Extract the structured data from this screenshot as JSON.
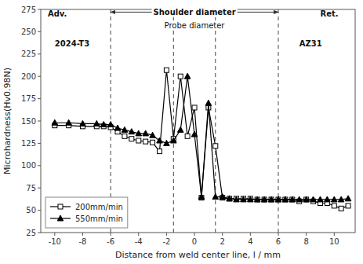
{
  "chart_data": {
    "type": "line",
    "xlabel": "Distance from weld center line, l / mm",
    "ylabel": "Microhardness(Hv0.98N)",
    "xlim": [
      -11,
      11.5
    ],
    "ylim": [
      25,
      275
    ],
    "xticks": [
      -10,
      -8,
      -6,
      -4,
      -2,
      0,
      2,
      4,
      6,
      8,
      10
    ],
    "yticks": [
      25,
      50,
      75,
      100,
      125,
      150,
      175,
      200,
      225,
      250,
      275
    ],
    "grid": false,
    "legend": "lower left",
    "x": [
      -10,
      -9,
      -8,
      -7,
      -6.5,
      -6,
      -5.5,
      -5,
      -4.5,
      -4,
      -3.5,
      -3,
      -2.5,
      -2,
      -1.5,
      -1,
      -0.5,
      0,
      0.5,
      1,
      1.5,
      2,
      2.5,
      3,
      3.5,
      4,
      4.5,
      5,
      5.5,
      6,
      6.5,
      7,
      7.5,
      8,
      8.5,
      9,
      9.5,
      10,
      10.5,
      11
    ],
    "series": [
      {
        "name": "200mm/min",
        "color": "#000000",
        "marker": "square",
        "values": [
          145,
          145,
          144,
          144,
          144,
          143,
          138,
          133,
          130,
          128,
          127,
          126,
          116,
          207,
          130,
          200,
          133,
          165,
          64,
          165,
          122,
          64,
          63,
          63,
          63,
          63,
          62,
          62,
          62,
          62,
          62,
          62,
          60,
          62,
          60,
          58,
          58,
          55,
          52,
          55
        ]
      },
      {
        "name": "550mm/min",
        "color": "#000000",
        "marker": "triangle",
        "values": [
          148,
          148,
          147,
          147,
          146,
          146,
          142,
          140,
          138,
          136,
          136,
          134,
          128,
          125,
          128,
          140,
          200,
          135,
          65,
          170,
          65,
          65,
          63,
          62,
          62,
          62,
          62,
          62,
          62,
          62,
          62,
          62,
          62,
          62,
          62,
          62,
          62,
          62,
          62,
          63
        ]
      }
    ],
    "vlines": [
      -6,
      -1.5,
      1.5,
      6
    ],
    "annotations": [
      {
        "text": "Shoulder diameter",
        "x": 0,
        "y": 272,
        "arrow": [
          -6,
          6
        ]
      },
      {
        "text": "Probe diameter",
        "x": 0,
        "y": 257,
        "arrow": [
          -1.5,
          1.5
        ]
      },
      {
        "text": "Adv.",
        "x": -10.5,
        "y": 270
      },
      {
        "text": "Ret.",
        "x": 9.0,
        "y": 270
      },
      {
        "text": "2024-T3",
        "x": -10.0,
        "y": 237
      },
      {
        "text": "AZ31",
        "x": 7.5,
        "y": 237
      }
    ]
  }
}
